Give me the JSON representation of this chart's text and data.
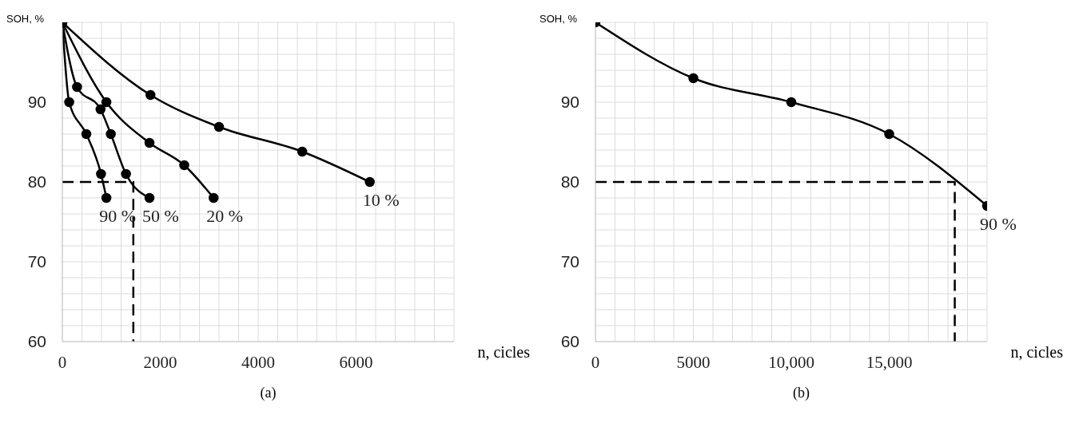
{
  "chart_data": [
    {
      "type": "line",
      "title": "(a)",
      "xlabel": "n, cicles",
      "ylabel": "SOH, %",
      "marker": "circle",
      "grid": true,
      "xlim": [
        0,
        8000
      ],
      "ylim": [
        60,
        100
      ],
      "xticks": [
        0,
        {
          "value": 400,
          "label": null
        },
        {
          "value": 800,
          "label": null
        },
        {
          "value": 1200,
          "label": null
        },
        {
          "value": 1600,
          "label": null
        },
        2000,
        {
          "value": 2400,
          "label": null
        },
        {
          "value": 2800,
          "label": null
        },
        {
          "value": 3200,
          "label": null
        },
        {
          "value": 3600,
          "label": null
        },
        4000,
        {
          "value": 4400,
          "label": null
        },
        {
          "value": 4800,
          "label": null
        },
        {
          "value": 5200,
          "label": null
        },
        {
          "value": 5600,
          "label": null
        },
        6000,
        {
          "value": 6400,
          "label": null
        },
        {
          "value": 6800,
          "label": null
        },
        {
          "value": 7200,
          "label": null
        },
        {
          "value": 7600,
          "label": null
        },
        {
          "value": 8000,
          "label": null
        }
      ],
      "yticks": [
        60,
        {
          "value": 62,
          "label": null
        },
        {
          "value": 64,
          "label": null
        },
        {
          "value": 66,
          "label": null
        },
        {
          "value": 68,
          "label": null
        },
        70,
        {
          "value": 72,
          "label": null
        },
        {
          "value": 74,
          "label": null
        },
        {
          "value": 76,
          "label": null
        },
        {
          "value": 78,
          "label": null
        },
        80,
        {
          "value": 82,
          "label": null
        },
        {
          "value": 84,
          "label": null
        },
        {
          "value": 86,
          "label": null
        },
        {
          "value": 88,
          "label": null
        },
        90,
        {
          "value": 92,
          "label": null
        },
        {
          "value": 94,
          "label": null
        },
        {
          "value": 96,
          "label": null
        },
        {
          "value": 98,
          "label": null
        },
        {
          "value": 100,
          "label": null
        }
      ],
      "series": [
        {
          "color": "#000000",
          "x": [
            0,
            1800,
            3200,
            4900,
            6280
          ],
          "values": [
            100,
            90.9,
            86.9,
            83.8,
            80
          ]
        },
        {
          "color": "#000000",
          "x": [
            0,
            900,
            1780,
            2490,
            3090
          ],
          "values": [
            100,
            90,
            84.9,
            82.1,
            78
          ]
        },
        {
          "color": "#000000",
          "x": [
            0,
            300,
            780,
            990,
            1300,
            1780
          ],
          "values": [
            100,
            91.9,
            89.1,
            86,
            81,
            78
          ]
        },
        {
          "color": "#000000",
          "x": [
            0,
            140,
            490,
            790,
            900
          ],
          "values": [
            100,
            90,
            86,
            81,
            78
          ]
        },
        {
          "color": "#000000",
          "marker": "none",
          "line_style": "dashed",
          "x": [
            0,
            1450,
            1450
          ],
          "values": [
            80,
            80,
            60
          ]
        }
      ],
      "annotations": [
        {
          "text": "10 %",
          "x": 6280,
          "y": 80
        },
        {
          "text": "20 %",
          "x": 3090,
          "y": 78
        },
        {
          "text": "50 %",
          "x": 1780,
          "y": 78
        },
        {
          "text": "90 %",
          "x": 900,
          "y": 78
        }
      ]
    },
    {
      "type": "line",
      "title": "(b)",
      "xlabel": "n, cicles",
      "ylabel": "SOH, %",
      "marker": "circle",
      "grid": true,
      "xlim": [
        0,
        20000
      ],
      "ylim": [
        60,
        100
      ],
      "xticks": [
        0,
        {
          "value": 1000,
          "label": null
        },
        {
          "value": 2000,
          "label": null
        },
        {
          "value": 3000,
          "label": null
        },
        {
          "value": 4000,
          "label": null
        },
        5000,
        {
          "value": 6000,
          "label": null
        },
        {
          "value": 7000,
          "label": null
        },
        {
          "value": 8000,
          "label": null
        },
        {
          "value": 9000,
          "label": null
        },
        {
          "value": 10000,
          "label": "10,000"
        },
        {
          "value": 11000,
          "label": null
        },
        {
          "value": 12000,
          "label": null
        },
        {
          "value": 13000,
          "label": null
        },
        {
          "value": 14000,
          "label": null
        },
        {
          "value": 15000,
          "label": "15,000"
        },
        {
          "value": 16000,
          "label": null
        },
        {
          "value": 17000,
          "label": null
        },
        {
          "value": 18000,
          "label": null
        },
        {
          "value": 19000,
          "label": null
        },
        {
          "value": 20000,
          "label": null
        }
      ],
      "yticks": [
        60,
        {
          "value": 62,
          "label": null
        },
        {
          "value": 64,
          "label": null
        },
        {
          "value": 66,
          "label": null
        },
        {
          "value": 68,
          "label": null
        },
        70,
        {
          "value": 72,
          "label": null
        },
        {
          "value": 74,
          "label": null
        },
        {
          "value": 76,
          "label": null
        },
        {
          "value": 78,
          "label": null
        },
        80,
        {
          "value": 82,
          "label": null
        },
        {
          "value": 84,
          "label": null
        },
        {
          "value": 86,
          "label": null
        },
        {
          "value": 88,
          "label": null
        },
        90,
        {
          "value": 92,
          "label": null
        },
        {
          "value": 94,
          "label": null
        },
        {
          "value": 96,
          "label": null
        },
        {
          "value": 98,
          "label": null
        },
        {
          "value": 100,
          "label": null
        }
      ],
      "series": [
        {
          "color": "#000000",
          "x": [
            0,
            5000,
            10000,
            15000,
            20000
          ],
          "values": [
            100,
            93,
            90,
            86,
            77
          ]
        },
        {
          "color": "#000000",
          "marker": "none",
          "line_style": "dashed",
          "x": [
            0,
            18350,
            18350
          ],
          "values": [
            80,
            80,
            60
          ]
        }
      ],
      "annotations": [
        {
          "text": "90 %",
          "x": 20000,
          "y": 77
        }
      ]
    }
  ]
}
